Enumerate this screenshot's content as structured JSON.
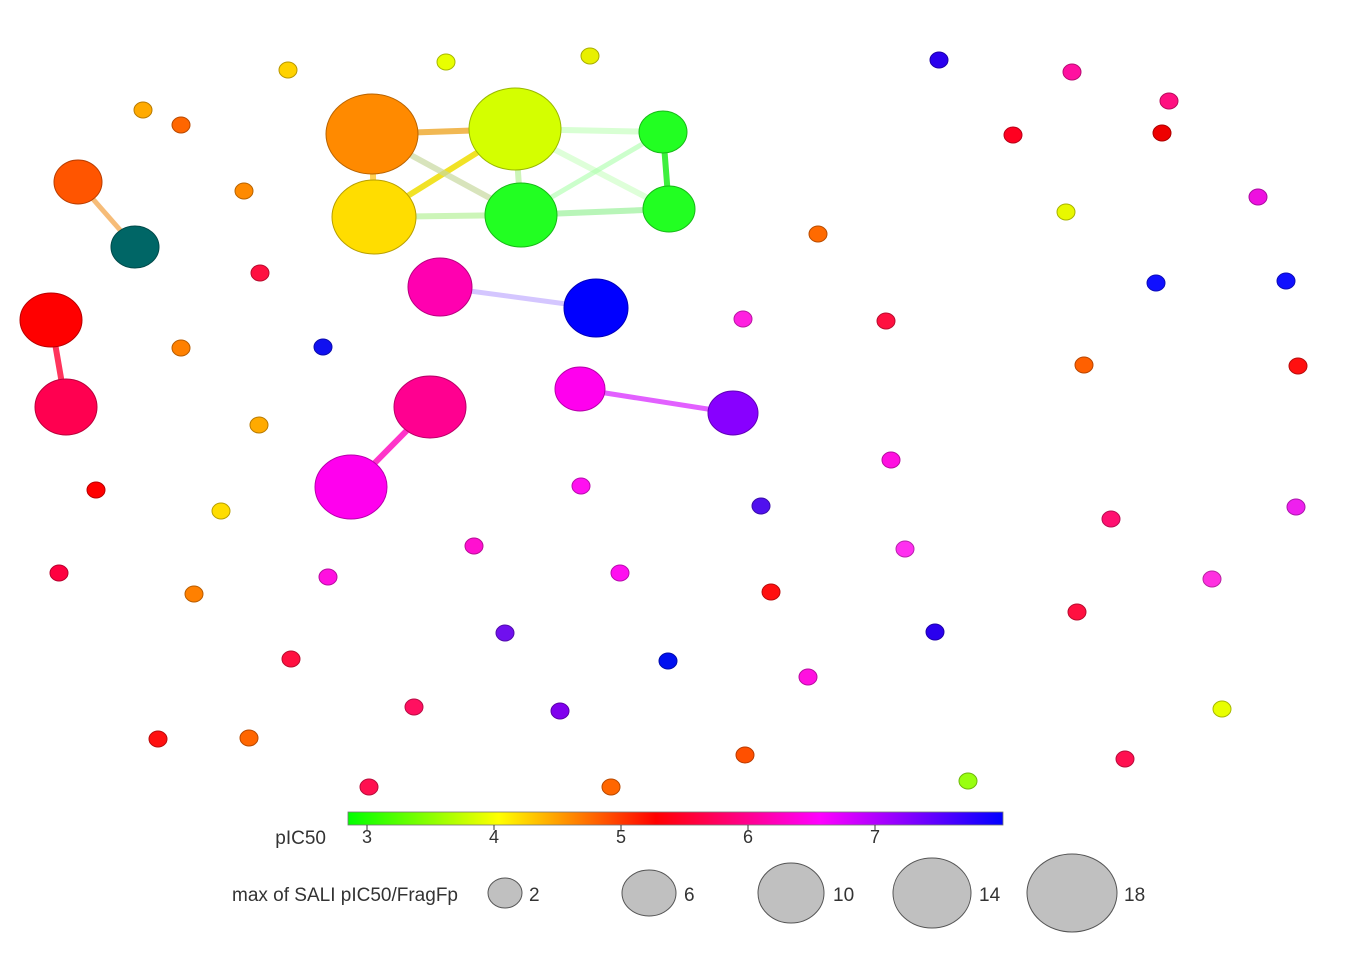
{
  "color_legend": {
    "label": "pIC50",
    "ticks": [
      "3",
      "4",
      "5",
      "6",
      "7"
    ],
    "stops": [
      "#00ff00",
      "#ffff00",
      "#ff0000",
      "#ff00ff",
      "#0000ff"
    ]
  },
  "size_legend": {
    "label": "max of SALI pIC50/FragFp",
    "items": [
      {
        "value": "2",
        "label": "2"
      },
      {
        "value": "6",
        "label": "6"
      },
      {
        "value": "10",
        "label": "10"
      },
      {
        "value": "14",
        "label": "14"
      },
      {
        "value": "18",
        "label": "18"
      }
    ],
    "fill": "#c0c0c0"
  },
  "network": {
    "singleton_colors": [
      "#ffd200",
      "#e8ff00",
      "#e8f000",
      "#2a00ee",
      "#ff10a0",
      "#ff1080",
      "#ffaa00",
      "#ff6600",
      "#ff0020",
      "#ee0000",
      "#ff8a00",
      "#ee10e0",
      "#e8f800",
      "#ff6a00",
      "#ff1040",
      "#1010ff",
      "#1010ff",
      "#ff8000",
      "#1010f0",
      "#ff20e0",
      "#ff1040",
      "#ff6000",
      "#ff1010",
      "#ffaa00",
      "#ff10e0",
      "#ff0000",
      "#ffdd00",
      "#ff10f0",
      "#5010ee",
      "#ff1070",
      "#ee20ee",
      "#ff0040",
      "#ff8000",
      "#ff10d0",
      "#ff10e0",
      "#ff10f0",
      "#ff30f0",
      "#ff1010",
      "#ff30e0",
      "#7010ee",
      "#0010f0",
      "#2a00ee",
      "#ff1040",
      "#ff1040",
      "#ff1060",
      "#8000ee",
      "#ff10e0",
      "#e8ff00",
      "#ff1010",
      "#ff6600",
      "#ff1050",
      "#ff5000",
      "#ff6600",
      "#99ff10",
      "#ff1050"
    ],
    "clusters": [
      {
        "node_colors": [
          "#ff8a00",
          "#d4ff00",
          "#ffdd00",
          "#22ff22",
          "#22ff22",
          "#22ff22"
        ]
      },
      {
        "node_colors": [
          "#ff5500",
          "#006666"
        ]
      },
      {
        "node_colors": [
          "#ff0000",
          "#ff0050"
        ]
      },
      {
        "node_colors": [
          "#ff00b0",
          "#0000ff"
        ]
      },
      {
        "node_colors": [
          "#ff0090",
          "#ff00ee"
        ]
      },
      {
        "node_colors": [
          "#ff00ee",
          "#8800ff"
        ]
      }
    ]
  }
}
